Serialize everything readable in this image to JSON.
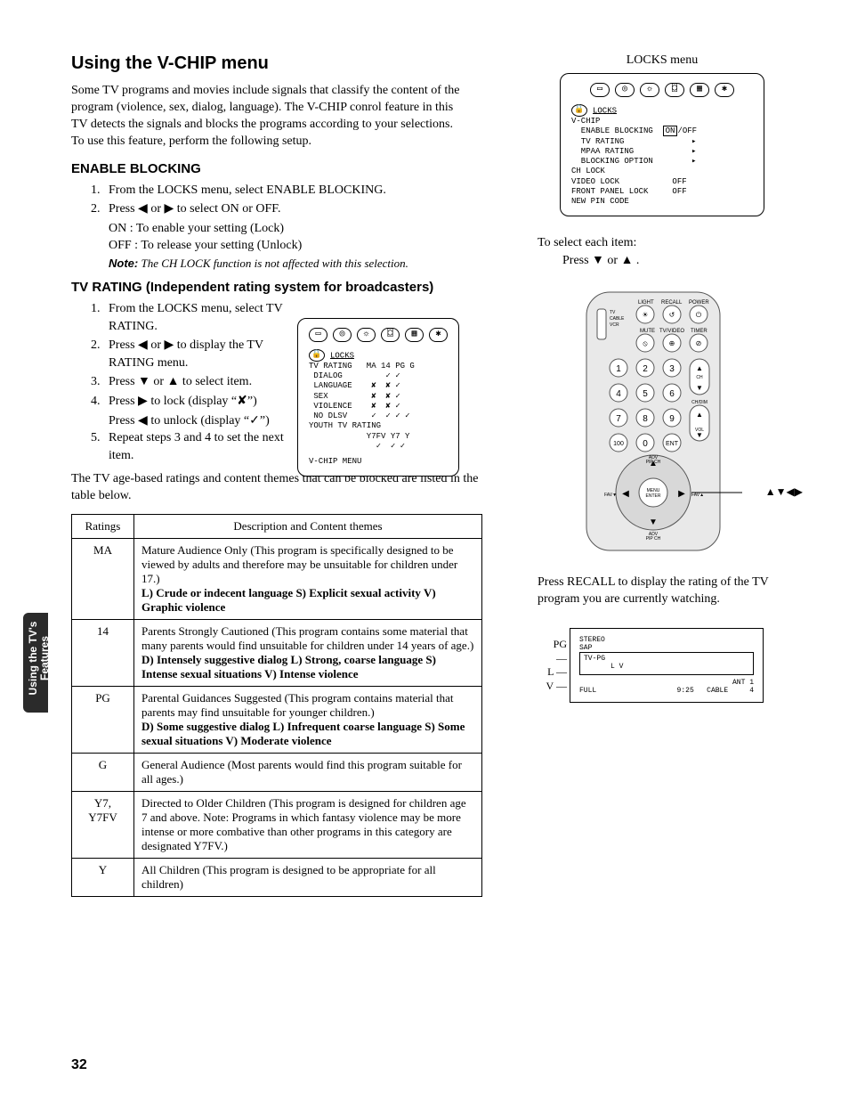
{
  "title": "Using the V-CHIP menu",
  "intro": "Some TV programs and movies include signals that classify the content of the program (violence, sex, dialog, language). The V-CHIP conrol feature in this TV detects the signals and blocks the programs according to your selections. To use this feature, perform the following setup.",
  "enable": {
    "heading": "ENABLE BLOCKING",
    "step1": "From the LOCKS menu, select ENABLE BLOCKING.",
    "step2": "Press ◀ or ▶ to select ON or OFF.",
    "on": "ON : To enable your setting (Lock)",
    "off": "OFF : To release your setting (Unlock)",
    "note_label": "Note:",
    "note_text": " The CH LOCK function is not affected with this selection."
  },
  "tvrating": {
    "heading": "TV RATING (Independent rating system for broadcasters)",
    "step1": "From the LOCKS menu, select TV RATING.",
    "step2": "Press ◀ or ▶ to display the TV RATING menu.",
    "step3": "Press ▼ or ▲ to select item.",
    "step4a": "Press ▶ to lock (display “✘”)",
    "step4b": "Press ◀ to unlock (display “✓”)",
    "step5": "Repeat steps 3 and 4 to set the next item.",
    "after": "The TV age-based ratings and content themes that can be blocked are listed in the table below."
  },
  "table": {
    "h1": "Ratings",
    "h2": "Description and Content themes",
    "rows": [
      {
        "r": "MA",
        "d": "Mature Audience Only (This program is specifically designed to be viewed by adults and therefore may be unsuitable for children under 17.)",
        "b": "L) Crude or indecent language  S) Explicit sexual activity  V) Graphic violence"
      },
      {
        "r": "14",
        "d": "Parents Strongly Cautioned (This program contains some material that many parents would find unsuitable for children under 14 years of age.)",
        "b": "D) Intensely suggestive dialog  L) Strong, coarse language  S) Intense sexual situations  V) Intense violence"
      },
      {
        "r": "PG",
        "d": "Parental Guidances Suggested (This program contains material that parents may find unsuitable for younger children.)",
        "b": "D) Some suggestive dialog  L) Infrequent coarse language  S) Some sexual situations  V) Moderate violence"
      },
      {
        "r": "G",
        "d": "General Audience (Most parents would find this program suitable for all ages.)",
        "b": ""
      },
      {
        "r": "Y7, Y7FV",
        "d": "Directed to Older Children (This program is designed for children age 7 and above. Note: Programs in which fantasy violence may be more intense or more combative than other programs in this category are designated Y7FV.)",
        "b": ""
      },
      {
        "r": "Y",
        "d": "All Children (This program is designed to be appropriate for all children)",
        "b": ""
      }
    ]
  },
  "sidetab_l1": "Using the TV's",
  "sidetab_l2": "Features",
  "page": "32",
  "right": {
    "locks_title": "LOCKS menu",
    "locks_lines": {
      "title": "LOCKS",
      "l1": "V-CHIP",
      "l2": "  ENABLE BLOCKING  ",
      "l2_hl": "ON",
      "l2_end": "/OFF",
      "l3": "  TV RATING              ▸",
      "l4": "  MPAA RATING            ▸",
      "l5": "  BLOCKING OPTION        ▸",
      "l6": "CH LOCK",
      "l7": "VIDEO LOCK           OFF",
      "l8": "FRONT PANEL LOCK     OFF",
      "l9": "NEW PIN CODE"
    },
    "select_text": "To select each item:",
    "select_press": "Press ▼ or ▲ .",
    "arrows_label": "▲▼◀▶",
    "recall_text": "Press RECALL to display the rating of the TV program you are currently watching.",
    "recall_box": {
      "pg": "PG",
      "l": "L",
      "v": "V",
      "stereo": "STEREO",
      "sap": "SAP",
      "tvpg": "TV-PG",
      "lv": "L     V",
      "full": "FULL",
      "time": "9:25",
      "cable": "CABLE",
      "ant": "ANT  1",
      "ch": "4"
    }
  },
  "tv_osd": {
    "title": "LOCKS",
    "head": "TV RATING   MA 14 PG G",
    "r1": " DIALOG         ✓ ✓",
    "r2": " LANGUAGE    ✘  ✘ ✓",
    "r3": " SEX         ✘  ✘ ✓",
    "r4": " VIOLENCE    ✘  ✘ ✓",
    "r5": " NO DLSV     ✓  ✓ ✓ ✓",
    "r6": "YOUTH TV RATING",
    "r7": "            Y7FV Y7 Y",
    "r8": "              ✓  ✓ ✓",
    "foot": "V-CHIP MENU"
  },
  "remote_labels": {
    "light": "LIGHT",
    "recall": "RECALL",
    "power": "POWER",
    "tv": "TV",
    "cable": "CABLE",
    "vcr": "VCR",
    "mute": "MUTE",
    "tvvideo": "TV/VIDEO",
    "timer": "TIMER",
    "ch": "CH",
    "chdn": "CH/DIM",
    "vol": "VOL",
    "fav": "FAV",
    "menu": "MENU\nENTER",
    "advpip": "ADV\nPIP CH"
  }
}
